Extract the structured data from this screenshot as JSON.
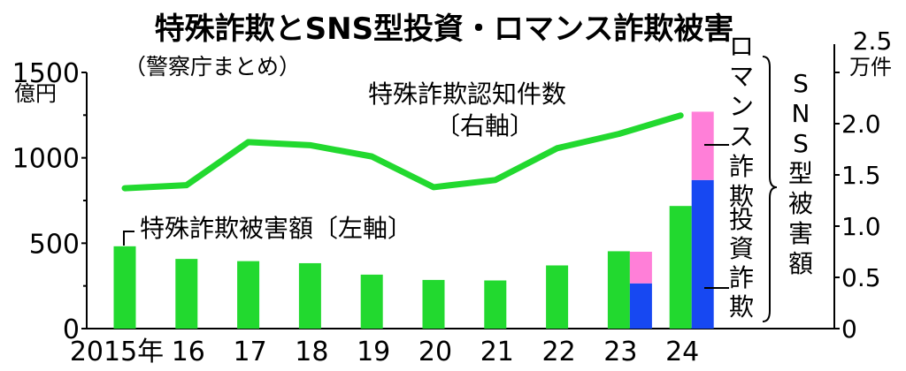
{
  "title": "特殊詐欺とSNS型投資・ロマンス詐欺被害",
  "subtitle": "（警察庁まとめ）",
  "left_unit": [
    "億円"
  ],
  "right_unit": [
    "2.5",
    "万件"
  ],
  "annotations": {
    "line_label": [
      "特殊詐欺認知件数",
      "〔右軸〕"
    ],
    "bar_label": "特殊詐欺被害額〔左軸〕",
    "romance": "ロマンス詐欺",
    "investment": "投資詐欺",
    "sns_total": "SNS型被害額"
  },
  "colors": {
    "green": "#22d92f",
    "blue": "#1748f2",
    "pink": "#ff7fd8"
  },
  "chart_data": {
    "type": "bar",
    "categories": [
      "2015年",
      "16",
      "17",
      "18",
      "19",
      "20",
      "21",
      "22",
      "23",
      "24"
    ],
    "left_axis": {
      "ylim": [
        0,
        1500
      ],
      "ticks": [
        "0",
        "500",
        "1000",
        "1500"
      ]
    },
    "right_axis": {
      "ylim": [
        0,
        2.5
      ],
      "ticks": [
        "0",
        "0.5",
        "1.0",
        "1.5",
        "2.0"
      ]
    },
    "series": [
      {
        "name": "特殊詐欺被害額",
        "type": "bar",
        "axis": "left",
        "values": [
          482,
          408,
          395,
          383,
          316,
          285,
          282,
          370,
          453,
          718
        ]
      },
      {
        "name": "投資詐欺",
        "type": "bar",
        "axis": "left",
        "stack": "sns",
        "values": [
          null,
          null,
          null,
          null,
          null,
          null,
          null,
          null,
          265,
          870
        ]
      },
      {
        "name": "ロマンス詐欺",
        "type": "bar",
        "axis": "left",
        "stack": "sns",
        "values": [
          null,
          null,
          null,
          null,
          null,
          null,
          null,
          null,
          185,
          400
        ]
      },
      {
        "name": "特殊詐欺認知件数",
        "type": "line",
        "axis": "right",
        "values": [
          1.37,
          1.4,
          1.82,
          1.79,
          1.68,
          1.38,
          1.45,
          1.76,
          1.9,
          2.08
        ]
      }
    ]
  }
}
